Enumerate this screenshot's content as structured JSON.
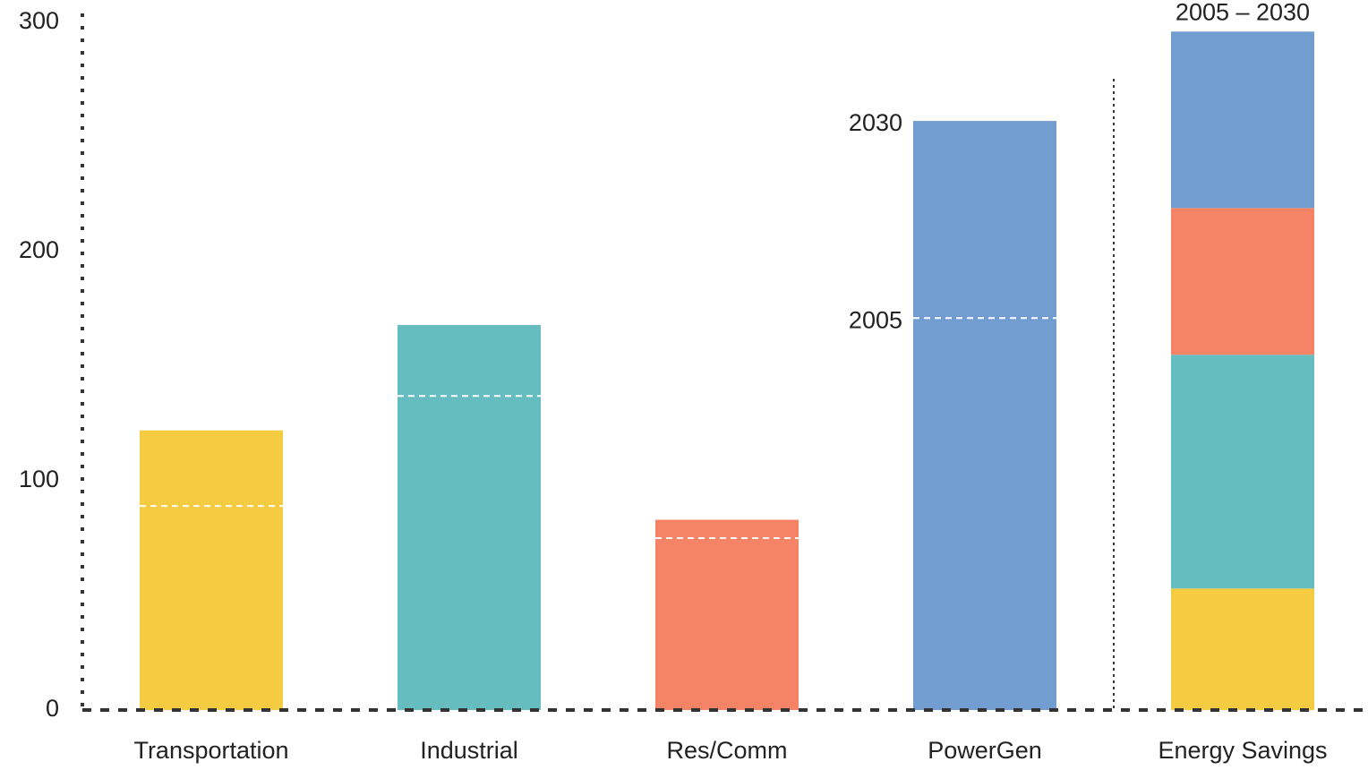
{
  "chart_data": {
    "type": "bar",
    "categories": [
      "Transportation",
      "Industrial",
      "Res/Comm",
      "PowerGen",
      "Energy Savings"
    ],
    "colors": [
      "#f5cb42",
      "#66bdc0",
      "#f58466",
      "#729dd1"
    ],
    "series": [
      {
        "name": "2030",
        "values": [
          122,
          168,
          83,
          257,
          null
        ]
      },
      {
        "name": "2005",
        "values": [
          89,
          137,
          75,
          171,
          null
        ]
      }
    ],
    "savings": {
      "label": "2005 – 2030",
      "values": [
        53,
        102,
        64,
        77
      ]
    },
    "ylim": [
      0,
      300
    ],
    "yticks": [
      0,
      100,
      200,
      300
    ]
  }
}
